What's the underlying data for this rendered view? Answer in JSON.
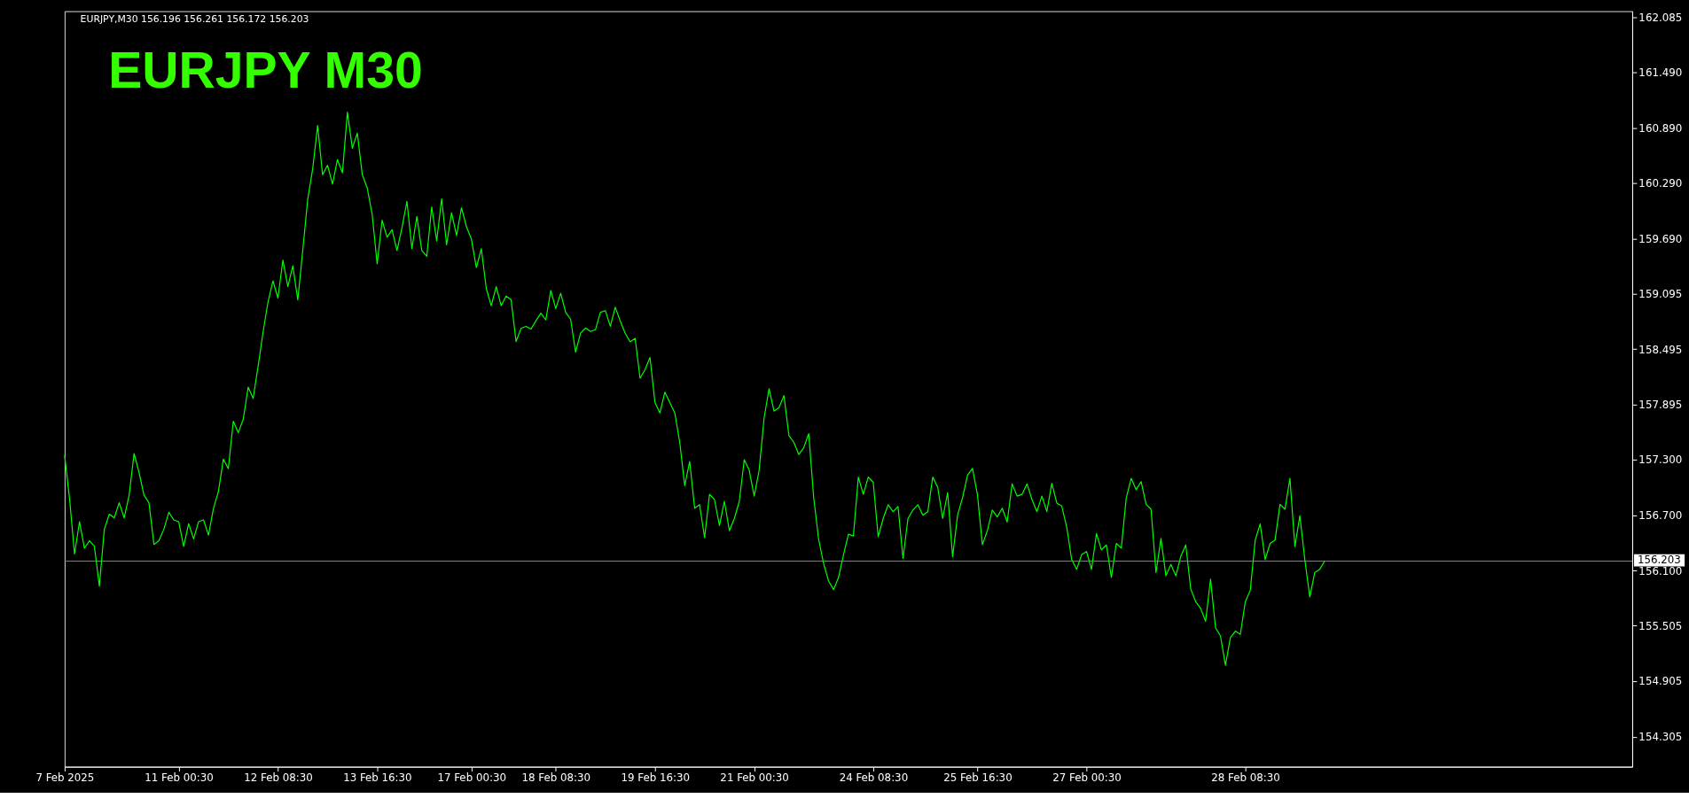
{
  "chart_data": {
    "type": "line",
    "title": "EURJPY  M30",
    "annotations": [
      "EURJPY,M30  156.196 156.261 156.172 156.203"
    ],
    "categories": [
      "7 Feb 2025",
      null,
      null,
      null,
      null,
      null,
      null,
      null,
      null,
      null,
      null,
      null,
      null,
      null,
      null,
      null,
      null,
      null,
      null,
      null,
      null,
      null,
      null,
      "11 Feb 00:30",
      null,
      null,
      null,
      null,
      null,
      null,
      null,
      null,
      null,
      null,
      null,
      null,
      null,
      null,
      null,
      null,
      null,
      null,
      null,
      "12 Feb 08:30",
      null,
      null,
      null,
      null,
      null,
      null,
      null,
      null,
      null,
      null,
      null,
      null,
      null,
      null,
      null,
      null,
      null,
      null,
      null,
      "13 Feb 16:30",
      null,
      null,
      null,
      null,
      null,
      null,
      null,
      null,
      null,
      null,
      null,
      null,
      null,
      null,
      null,
      null,
      null,
      null,
      "17 Feb 00:30",
      null,
      null,
      null,
      null,
      null,
      null,
      null,
      null,
      null,
      null,
      null,
      null,
      null,
      null,
      null,
      null,
      "18 Feb 08:30",
      null,
      null,
      null,
      null,
      null,
      null,
      null,
      null,
      null,
      null,
      null,
      null,
      null,
      null,
      null,
      null,
      null,
      null,
      null,
      "19 Feb 16:30",
      null,
      null,
      null,
      null,
      null,
      null,
      null,
      null,
      null,
      null,
      null,
      null,
      null,
      null,
      null,
      null,
      null,
      null,
      null,
      "21 Feb 00:30",
      null,
      null,
      null,
      null,
      null,
      null,
      null,
      null,
      null,
      null,
      null,
      null,
      null,
      null,
      null,
      null,
      null,
      null,
      null,
      null,
      null,
      null,
      null,
      "24 Feb 08:30",
      null,
      null,
      null,
      null,
      null,
      null,
      null,
      null,
      null,
      null,
      null,
      null,
      null,
      null,
      null,
      null,
      null,
      null,
      null,
      null,
      "25 Feb 16:30",
      null,
      null,
      null,
      null,
      null,
      null,
      null,
      null,
      null,
      null,
      null,
      null,
      null,
      null,
      null,
      null,
      null,
      null,
      null,
      null,
      null,
      "27 Feb 00:30",
      null,
      null,
      null,
      null,
      null,
      null,
      null,
      null,
      null,
      null,
      null,
      null,
      null,
      null,
      null,
      null,
      null,
      null,
      null,
      null,
      null,
      null,
      null,
      null,
      null,
      null,
      null,
      null,
      null,
      null,
      null,
      "28 Feb 08:30",
      null,
      null,
      null,
      null,
      null,
      null,
      null,
      null,
      null,
      null,
      null,
      null,
      null,
      null,
      null,
      null,
      null,
      null,
      null,
      null,
      null,
      null,
      null,
      null,
      null,
      null,
      null,
      null,
      null,
      null,
      null,
      null,
      null,
      null,
      null,
      null,
      null,
      null,
      null,
      null,
      null,
      null,
      null,
      null,
      null,
      null,
      null,
      null,
      null,
      null,
      null,
      null,
      null,
      null,
      null,
      null,
      null,
      null,
      null,
      null,
      null,
      null,
      null,
      null,
      null,
      null,
      null,
      null,
      null,
      null,
      null,
      null,
      null,
      null,
      null,
      null,
      null,
      null
    ],
    "series": [
      {
        "color": "#00ff00",
        "values": [
          157.347,
          156.875,
          156.28,
          156.629,
          156.342,
          156.424,
          156.362,
          155.932,
          156.547,
          156.711,
          156.67,
          156.834,
          156.67,
          156.916,
          157.367,
          157.162,
          156.916,
          156.834,
          156.383,
          156.424,
          156.547,
          156.731,
          156.649,
          156.629,
          156.362,
          156.608,
          156.444,
          156.629,
          156.649,
          156.485,
          156.772,
          156.957,
          157.306,
          157.203,
          157.716,
          157.593,
          157.736,
          158.085,
          157.962,
          158.31,
          158.679,
          159.007,
          159.233,
          159.048,
          159.459,
          159.171,
          159.397,
          159.028,
          159.561,
          160.115,
          160.443,
          160.914,
          160.381,
          160.484,
          160.279,
          160.545,
          160.402,
          161.058,
          160.668,
          160.832,
          160.381,
          160.238,
          159.951,
          159.418,
          159.889,
          159.705,
          159.787,
          159.561,
          159.807,
          160.094,
          159.582,
          159.93,
          159.561,
          159.5,
          160.033,
          159.664,
          160.123,
          159.623,
          159.971,
          159.725,
          160.024,
          159.819,
          159.684,
          159.377,
          159.582,
          159.151,
          158.966,
          159.171,
          158.966,
          159.069,
          159.028,
          158.577,
          158.72,
          158.741,
          158.712,
          158.802,
          158.884,
          158.811,
          159.13,
          158.934,
          159.099,
          158.893,
          158.818,
          158.462,
          158.668,
          158.724,
          158.687,
          158.705,
          158.893,
          158.912,
          158.743,
          158.949,
          158.799,
          158.668,
          158.574,
          158.612,
          158.181,
          158.274,
          158.406,
          157.918,
          157.806,
          158.031,
          157.918,
          157.806,
          157.487,
          157.019,
          157.281,
          156.775,
          156.813,
          156.457,
          156.925,
          156.869,
          156.588,
          156.85,
          156.532,
          156.663,
          156.85,
          157.3,
          157.187,
          156.906,
          157.187,
          157.75,
          158.068,
          157.825,
          157.862,
          157.993,
          157.562,
          157.487,
          157.356,
          157.431,
          157.581,
          156.888,
          156.438,
          156.175,
          155.988,
          155.894,
          156.026,
          156.269,
          156.494,
          156.475,
          157.112,
          156.925,
          157.112,
          157.056,
          156.468,
          156.663,
          156.813,
          156.738,
          156.794,
          156.232,
          156.663,
          156.756,
          156.813,
          156.7,
          156.738,
          157.112,
          157.0,
          156.663,
          156.944,
          156.25,
          156.7,
          156.888,
          157.131,
          157.206,
          156.925,
          156.382,
          156.532,
          156.756,
          156.681,
          156.775,
          156.625,
          157.038,
          156.906,
          156.925,
          157.038,
          156.869,
          156.738,
          156.906,
          156.738,
          157.045,
          156.831,
          156.799,
          156.571,
          156.22,
          156.114,
          156.272,
          156.307,
          156.114,
          156.501,
          156.325,
          156.378,
          156.026,
          156.395,
          156.343,
          156.887,
          157.098,
          156.975,
          157.063,
          156.817,
          156.764,
          156.079,
          156.448,
          156.044,
          156.167,
          156.044,
          156.255,
          156.378,
          155.903,
          155.763,
          155.692,
          155.552,
          156.009,
          155.482,
          155.394,
          155.077,
          155.376,
          155.446,
          155.411,
          155.763,
          155.886,
          156.43,
          156.606,
          156.22,
          156.395,
          156.43,
          156.817,
          156.764,
          157.098,
          156.36,
          156.694,
          156.22,
          155.815,
          156.079,
          156.114,
          156.203,
          null,
          null,
          null,
          null,
          null,
          null,
          null,
          null,
          null,
          null,
          null,
          null,
          null,
          null,
          null,
          null,
          null,
          null,
          null,
          null,
          null,
          null,
          null,
          null,
          null,
          null,
          null,
          null,
          null,
          null,
          null,
          null,
          null,
          null,
          null,
          null,
          null,
          null,
          null,
          null,
          null,
          null,
          null,
          null,
          null,
          null,
          null,
          null,
          null,
          null,
          null,
          null,
          null,
          null,
          null,
          null,
          null,
          null,
          null,
          null,
          null,
          null
        ]
      }
    ],
    "ylim": [
      153.98,
      162.15
    ],
    "yticks": [
      162.085,
      {
        "value": 161.49,
        "label": "161.490"
      },
      {
        "value": 160.89,
        "label": "160.890"
      },
      {
        "value": 160.29,
        "label": "160.290"
      },
      {
        "value": 159.69,
        "label": "159.690"
      },
      159.095,
      158.495,
      157.895,
      {
        "value": 157.3,
        "label": "157.300"
      },
      {
        "value": 156.7,
        "label": "156.700"
      },
      {
        "value": 156.1,
        "label": "156.100"
      },
      155.505,
      154.905,
      154.305
    ],
    "ref_lines": [
      {
        "axis": "y",
        "value": 156.203,
        "label": "156.203",
        "color": "#778899",
        "line_style": "solid"
      }
    ],
    "grid": false,
    "line_style": "solid"
  }
}
